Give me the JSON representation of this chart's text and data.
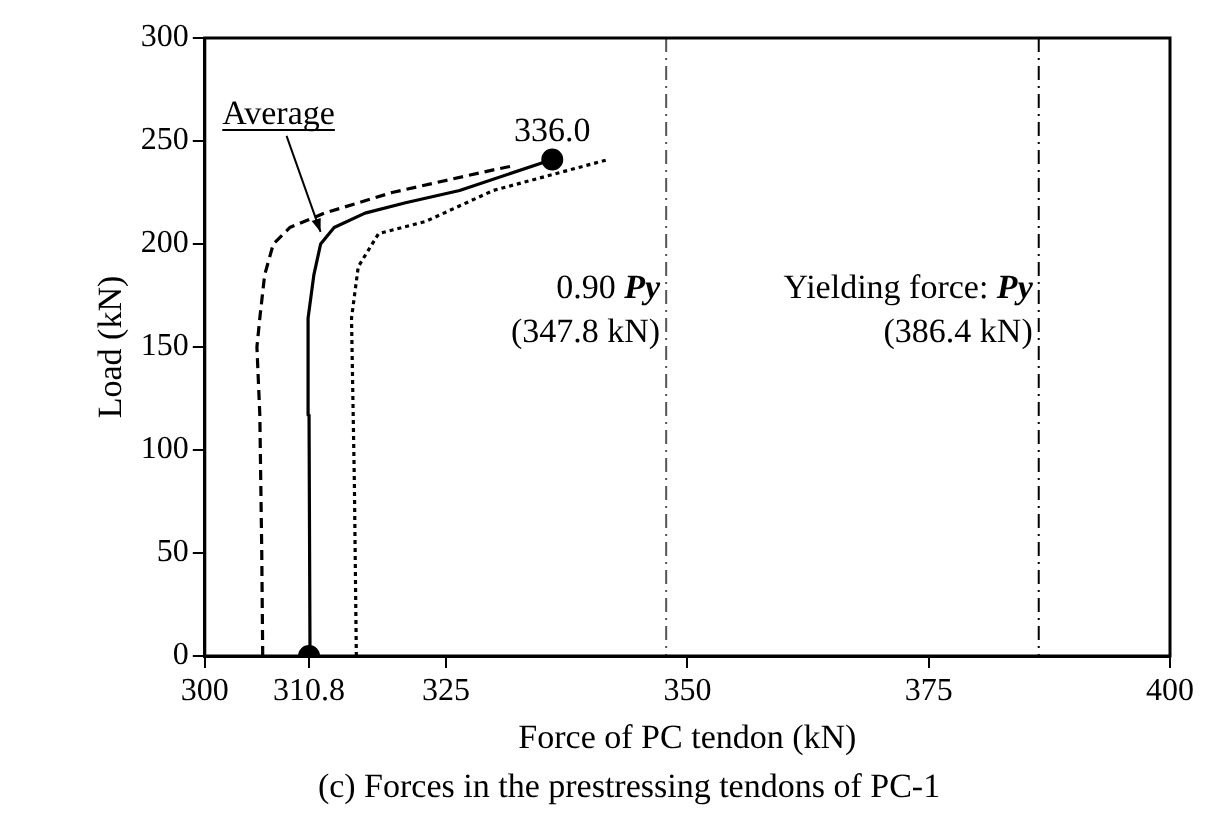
{
  "chart_data": {
    "type": "line",
    "title": "(c) Forces in the prestressing tendons of PC-1",
    "xlabel": "Force of PC tendon (kN)",
    "ylabel": "Load (kN)",
    "xlim": [
      300,
      400
    ],
    "xticks": [
      300,
      {
        "value": 310.8,
        "label": "310.8"
      },
      325,
      350,
      375,
      400
    ],
    "ylim": [
      0,
      300
    ],
    "yticks": [
      0,
      50,
      100,
      150,
      200,
      250,
      300
    ],
    "grid": false,
    "legend": false,
    "marker": "none",
    "series": [
      {
        "color": "#000000",
        "line_style": "solid",
        "x": [
          310.9,
          310.8,
          310.7,
          311.3,
          312.0,
          313.4,
          316.6,
          320.8,
          326.4,
          336.0
        ],
        "values": [
          0,
          117,
          164,
          185,
          200,
          208,
          215,
          220,
          226,
          241
        ]
      },
      {
        "color": "#000000",
        "line_style": "dashed",
        "x": [
          306.0,
          305.9,
          305.7,
          305.4,
          305.7,
          306.2,
          307.1,
          308.8,
          312.4,
          319.4,
          329.9,
          332.0
        ],
        "values": [
          0,
          51,
          117,
          150,
          164,
          185,
          200,
          208,
          215,
          225,
          236,
          238
        ]
      },
      {
        "color": "#000000",
        "line_style": "dotted",
        "x": [
          315.7,
          315.5,
          315.2,
          315.9,
          318.0,
          322.9,
          329.9,
          341.8
        ],
        "values": [
          0,
          83,
          164,
          189,
          205,
          211,
          226,
          241
        ]
      },
      {
        "type": "scatter",
        "color": "#000000",
        "marker": "circle",
        "x": [
          310.8,
          336.0
        ],
        "values": [
          0,
          241
        ]
      }
    ],
    "ref_lines": [
      {
        "axis": "x",
        "value": 347.8,
        "label": "0.90 Py\n(347.8 kN)",
        "line_style": "dashed",
        "color": "#555555"
      },
      {
        "axis": "x",
        "value": 386.4,
        "label": "Yielding force: Py\n(386.4 kN)",
        "line_style": "dashed",
        "color": "#000000"
      }
    ],
    "annotations": [
      {
        "text": "Average",
        "x": 312.2,
        "y": 202
      },
      {
        "text": "336.0",
        "x": 336.0,
        "y": 241
      }
    ]
  }
}
